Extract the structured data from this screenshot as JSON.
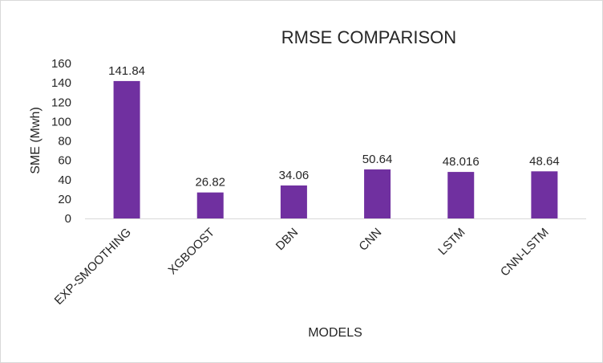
{
  "chart_data": {
    "type": "bar",
    "title": "RMSE COMPARISON",
    "xlabel": "MODELS",
    "ylabel": "SME (Mwh)",
    "categories": [
      "EXP-SMOOTHING",
      "XGBOOST",
      "DBN",
      "CNN",
      "LSTM",
      "CNN-LSTM"
    ],
    "values": [
      141.84,
      26.82,
      34.06,
      50.64,
      48.016,
      48.64
    ],
    "data_labels": [
      "141.84",
      "26.82",
      "34.06",
      "50.64",
      "48.016",
      "48.64"
    ],
    "ylim": [
      0,
      160
    ],
    "yticks": [
      0,
      20,
      40,
      60,
      80,
      100,
      120,
      140,
      160
    ],
    "grid": false,
    "legend": "none",
    "bar_color": "#7030a0"
  }
}
